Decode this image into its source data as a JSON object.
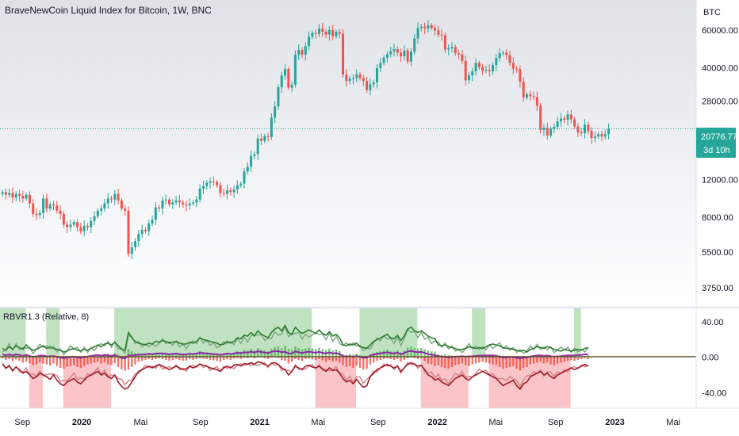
{
  "chart_data": [
    {
      "type": "candlestick",
      "title": "BraveNewCoin Liquid Index for Bitcoin, 1W, BNC",
      "currency": "BTC",
      "scale": "log",
      "ylim": [
        3300,
        70000
      ],
      "y_ticks": [
        "60000.00",
        "40000.00",
        "28000.00",
        "12000.00",
        "8000.00",
        "5500.00",
        "3750.00"
      ],
      "y_tick_values": [
        60000,
        40000,
        28000,
        12000,
        8000,
        5500,
        3750
      ],
      "x_ticks": [
        "Sep",
        "2020",
        "Mai",
        "Sep",
        "2021",
        "Mai",
        "Sep",
        "2022",
        "Mai",
        "Sep",
        "2023",
        "Mai"
      ],
      "x_tick_dates": [
        "2019-09-01",
        "2020-01-01",
        "2020-05-01",
        "2020-09-01",
        "2021-01-01",
        "2021-05-01",
        "2021-09-01",
        "2022-01-01",
        "2022-05-01",
        "2022-09-01",
        "2023-01-01",
        "2023-05-01"
      ],
      "x_range": [
        "2019-07-17",
        "2023-06-17"
      ],
      "last_price": "20776.77",
      "countdown": "3d 10h",
      "candles_weekly_close": [
        10500,
        10200,
        10400,
        9900,
        10300,
        10100,
        9800,
        10200,
        9300,
        8300,
        8200,
        8400,
        9800,
        8800,
        9200,
        9100,
        8600,
        8300,
        7400,
        7200,
        7400,
        7600,
        7200,
        6900,
        7300,
        7200,
        7700,
        8100,
        8600,
        8800,
        9300,
        9800,
        9700,
        10300,
        9600,
        8800,
        8600,
        5400,
        5800,
        6200,
        6700,
        7000,
        6900,
        7500,
        7800,
        8900,
        8800,
        9600,
        9700,
        9200,
        9400,
        9600,
        9400,
        9200,
        9100,
        9300,
        9400,
        9700,
        10900,
        11200,
        11600,
        11800,
        11700,
        11300,
        10400,
        10300,
        10700,
        10500,
        10800,
        11300,
        11500,
        13100,
        13800,
        15500,
        15800,
        18700,
        18200,
        19200,
        19000,
        23400,
        26400,
        32500,
        36800,
        39500,
        32300,
        33400,
        46000,
        48500,
        46100,
        50500,
        55900,
        58200,
        57600,
        61000,
        59000,
        57200,
        60100,
        56200,
        58900,
        57800,
        37200,
        34700,
        35600,
        35800,
        37300,
        35800,
        34700,
        31500,
        33500,
        34200,
        39900,
        42200,
        44600,
        46300,
        47800,
        48900,
        47100,
        45300,
        48200,
        42800,
        47600,
        54900,
        61500,
        62300,
        61100,
        63300,
        61500,
        59800,
        57200,
        56800,
        48800,
        49400,
        50100,
        46800,
        46300,
        43000,
        35000,
        36900,
        38500,
        42200,
        40200,
        38900,
        39100,
        38500,
        41200,
        44500,
        46800,
        47100,
        45900,
        42200,
        39600,
        39400,
        34400,
        29100,
        30100,
        29500,
        29200,
        26600,
        20500,
        21000,
        19300,
        20800,
        21200,
        22500,
        23200,
        22900,
        24200,
        23000,
        21300,
        20000,
        19800,
        21700,
        20300,
        18800,
        19100,
        19600,
        19100,
        19600,
        20700
      ],
      "start_date": "2019-07-22",
      "interval_days": 7
    },
    {
      "type": "bar+line",
      "title": "RBVR1.3 (Relative, 8)",
      "ylim": [
        -55,
        50
      ],
      "y_ticks": [
        "40.00",
        "0.00",
        "-40.00"
      ],
      "y_tick_values": [
        40,
        0,
        -40
      ],
      "zero_line": 0,
      "up_zones": [
        [
          "2019-07-17",
          "2019-09-08"
        ],
        [
          "2019-10-20",
          "2019-11-17"
        ],
        [
          "2020-03-08",
          "2021-04-18"
        ],
        [
          "2021-07-25",
          "2021-11-21"
        ],
        [
          "2022-03-13",
          "2022-04-10"
        ],
        [
          "2022-10-09",
          "2022-10-23"
        ]
      ],
      "down_zones": [
        [
          "2019-09-15",
          "2019-10-13"
        ],
        [
          "2019-11-24",
          "2020-03-01"
        ],
        [
          "2021-04-25",
          "2021-07-18"
        ],
        [
          "2021-11-28",
          "2022-03-06"
        ],
        [
          "2022-04-17",
          "2022-10-02"
        ]
      ],
      "bull_line_approx": [
        10,
        8,
        12,
        9,
        13,
        11,
        9,
        14,
        10,
        8,
        9,
        11,
        13,
        10,
        12,
        10,
        9,
        8,
        6,
        7,
        9,
        10,
        8,
        7,
        9,
        8,
        10,
        12,
        14,
        12,
        15,
        16,
        14,
        17,
        13,
        9,
        8,
        28,
        22,
        18,
        16,
        15,
        14,
        16,
        15,
        18,
        17,
        19,
        18,
        16,
        17,
        18,
        16,
        15,
        15,
        17,
        16,
        18,
        22,
        20,
        19,
        18,
        17,
        16,
        14,
        15,
        18,
        16,
        18,
        22,
        21,
        25,
        24,
        28,
        24,
        30,
        26,
        24,
        22,
        28,
        32,
        34,
        30,
        36,
        28,
        26,
        34,
        30,
        27,
        29,
        31,
        29,
        27,
        31,
        27,
        25,
        29,
        24,
        26,
        22,
        14,
        13,
        15,
        14,
        16,
        12,
        11,
        10,
        14,
        18,
        20,
        22,
        24,
        26,
        22,
        21,
        25,
        19,
        24,
        32,
        34,
        30,
        28,
        30,
        27,
        24,
        22,
        21,
        14,
        13,
        14,
        12,
        11,
        10,
        8,
        9,
        10,
        12,
        11,
        10,
        11,
        10,
        12,
        14,
        15,
        14,
        13,
        11,
        10,
        10,
        9,
        8,
        7,
        8,
        6,
        9,
        10,
        12,
        11,
        10,
        12,
        11,
        9,
        8,
        7,
        9,
        8,
        7,
        8,
        9,
        8,
        10,
        11
      ],
      "bear_line_approx": [
        -8,
        -12,
        -10,
        -15,
        -11,
        -14,
        -18,
        -16,
        -20,
        -24,
        -22,
        -18,
        -20,
        -22,
        -25,
        -20,
        -26,
        -30,
        -32,
        -28,
        -26,
        -24,
        -28,
        -30,
        -26,
        -22,
        -20,
        -18,
        -16,
        -20,
        -18,
        -22,
        -24,
        -20,
        -28,
        -33,
        -36,
        -34,
        -28,
        -22,
        -16,
        -14,
        -12,
        -10,
        -12,
        -10,
        -8,
        -10,
        -12,
        -14,
        -12,
        -10,
        -12,
        -14,
        -13,
        -10,
        -12,
        -10,
        -8,
        -9,
        -10,
        -12,
        -13,
        -14,
        -16,
        -12,
        -10,
        -12,
        -9,
        -8,
        -10,
        -7,
        -8,
        -6,
        -8,
        -5,
        -6,
        -8,
        -10,
        -7,
        -6,
        -8,
        -12,
        -14,
        -20,
        -16,
        -10,
        -12,
        -14,
        -10,
        -9,
        -11,
        -12,
        -10,
        -13,
        -16,
        -12,
        -15,
        -14,
        -18,
        -24,
        -28,
        -26,
        -30,
        -25,
        -30,
        -34,
        -32,
        -22,
        -18,
        -14,
        -12,
        -10,
        -8,
        -10,
        -12,
        -10,
        -16,
        -12,
        -8,
        -6,
        -8,
        -10,
        -9,
        -14,
        -20,
        -22,
        -26,
        -24,
        -28,
        -30,
        -32,
        -28,
        -24,
        -22,
        -20,
        -24,
        -26,
        -22,
        -20,
        -18,
        -16,
        -18,
        -20,
        -22,
        -24,
        -28,
        -32,
        -30,
        -28,
        -26,
        -32,
        -36,
        -30,
        -28,
        -22,
        -20,
        -18,
        -16,
        -20,
        -18,
        -22,
        -24,
        -20,
        -18,
        -16,
        -14,
        -12,
        -14,
        -12,
        -10,
        -8,
        -10,
        -9
      ],
      "colors": {
        "bull_line": "#2e7d32",
        "bull_line_light": "#81a987",
        "bear_line": "#a21c2a",
        "bear_line_light": "#d4868d",
        "ma_line": "#8e24aa",
        "zero_accent": "#fdd835",
        "up_zone": "#a5d6a7",
        "down_zone": "#f8b0b6"
      }
    }
  ],
  "colors": {
    "up": "#26a69a",
    "down": "#ef5350",
    "price_line": "#26a69a",
    "badge_bg": "#26a69a",
    "axis_bg": "#ffffff"
  }
}
